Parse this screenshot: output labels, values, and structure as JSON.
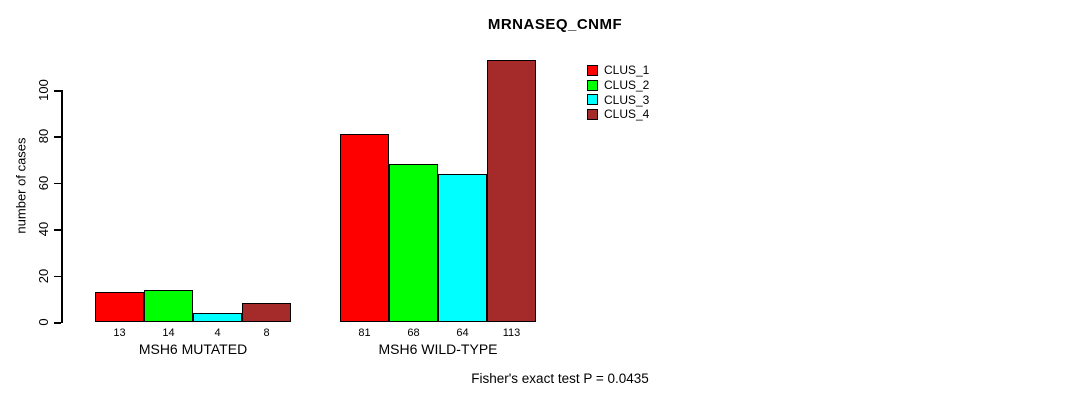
{
  "chart_data": {
    "type": "bar",
    "title": "MRNASEQ_CNMF",
    "ylabel": "number of cases",
    "xlabel": "",
    "ylim": [
      0,
      115
    ],
    "yticks": [
      0,
      20,
      40,
      60,
      80,
      100
    ],
    "grid": false,
    "bar_value_labels_shown": true,
    "categories": [
      "MSH6 MUTATED",
      "MSH6 WILD-TYPE"
    ],
    "series": [
      {
        "name": "CLUS_1",
        "color": "#ff0000",
        "values": [
          13,
          81
        ]
      },
      {
        "name": "CLUS_2",
        "color": "#00ff00",
        "values": [
          14,
          68
        ]
      },
      {
        "name": "CLUS_3",
        "color": "#00ffff",
        "values": [
          4,
          64
        ]
      },
      {
        "name": "CLUS_4",
        "color": "#a52a2a",
        "values": [
          8,
          113
        ]
      }
    ],
    "legend_position": "top-right",
    "annotation": "Fisher's exact test P = 0.0435"
  }
}
